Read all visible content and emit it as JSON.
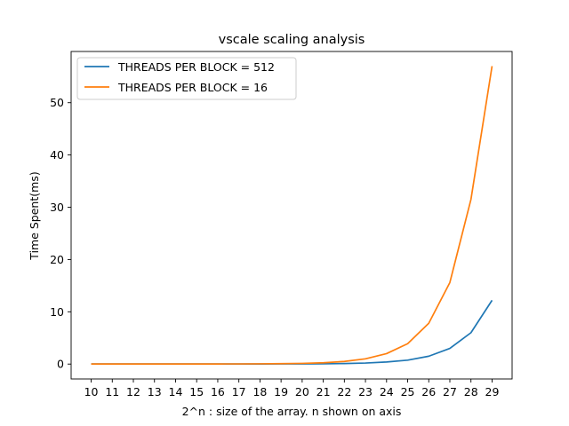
{
  "chart_data": {
    "type": "line",
    "title": "vscale scaling analysis",
    "xlabel": "2^n : size of the array. n shown on axis",
    "ylabel": "Time Spent(ms)",
    "x": [
      10,
      11,
      12,
      13,
      14,
      15,
      16,
      17,
      18,
      19,
      20,
      21,
      22,
      23,
      24,
      25,
      26,
      27,
      28,
      29
    ],
    "xlim": [
      9.05,
      29.95
    ],
    "ylim": [
      -2.85,
      59.8
    ],
    "xticks": [
      10,
      11,
      12,
      13,
      14,
      15,
      16,
      17,
      18,
      19,
      20,
      21,
      22,
      23,
      24,
      25,
      26,
      27,
      28,
      29
    ],
    "yticks": [
      0,
      10,
      20,
      30,
      40,
      50
    ],
    "grid": false,
    "legend": "upper-left",
    "series": [
      {
        "name": "THREADS PER BLOCK = 512",
        "color": "#1f77b4",
        "values": [
          0.01,
          0.01,
          0.01,
          0.01,
          0.01,
          0.01,
          0.01,
          0.01,
          0.02,
          0.03,
          0.04,
          0.06,
          0.1,
          0.2,
          0.4,
          0.75,
          1.5,
          3.0,
          6.0,
          12.2
        ]
      },
      {
        "name": "THREADS PER BLOCK = 16",
        "color": "#ff7f0e",
        "values": [
          0.01,
          0.01,
          0.01,
          0.01,
          0.01,
          0.02,
          0.02,
          0.03,
          0.05,
          0.08,
          0.13,
          0.25,
          0.5,
          1.0,
          2.0,
          3.9,
          7.8,
          15.6,
          31.5,
          57.0
        ]
      }
    ]
  }
}
